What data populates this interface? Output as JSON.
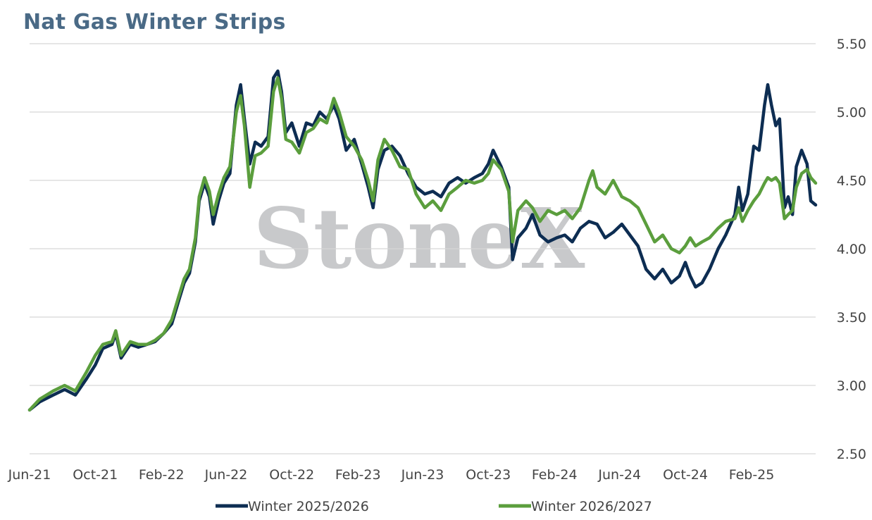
{
  "chart_data": {
    "type": "line",
    "title": "Nat Gas Winter Strips",
    "xlabel": "",
    "ylabel": "",
    "ylim": [
      2.5,
      5.5
    ],
    "yticks": [
      "2.50",
      "3.00",
      "3.50",
      "4.00",
      "4.50",
      "5.00",
      "5.50"
    ],
    "y_axis_side": "right",
    "xticks": [
      "Jun-21",
      "Oct-21",
      "Feb-22",
      "Jun-22",
      "Oct-22",
      "Feb-23",
      "Jun-23",
      "Oct-23",
      "Feb-24",
      "Jun-24",
      "Oct-24",
      "Feb-25"
    ],
    "x_range": [
      "2021-06-01",
      "2025-05-31"
    ],
    "grid": "horizontal",
    "legend_position": "bottom",
    "watermark": "StoneX",
    "series": [
      {
        "name": "Winter 2025/2026",
        "color": "#0d2d52",
        "points": [
          [
            "2021-06-01",
            2.82
          ],
          [
            "2021-06-20",
            2.88
          ],
          [
            "2021-07-15",
            2.93
          ],
          [
            "2021-08-05",
            2.97
          ],
          [
            "2021-08-25",
            2.93
          ],
          [
            "2021-09-15",
            3.05
          ],
          [
            "2021-10-01",
            3.15
          ],
          [
            "2021-10-15",
            3.27
          ],
          [
            "2021-11-01",
            3.3
          ],
          [
            "2021-11-08",
            3.38
          ],
          [
            "2021-11-18",
            3.2
          ],
          [
            "2021-12-05",
            3.3
          ],
          [
            "2021-12-20",
            3.28
          ],
          [
            "2022-01-05",
            3.3
          ],
          [
            "2022-01-20",
            3.32
          ],
          [
            "2022-02-05",
            3.38
          ],
          [
            "2022-02-20",
            3.45
          ],
          [
            "2022-03-05",
            3.62
          ],
          [
            "2022-03-15",
            3.75
          ],
          [
            "2022-03-25",
            3.82
          ],
          [
            "2022-04-05",
            4.05
          ],
          [
            "2022-04-12",
            4.35
          ],
          [
            "2022-04-22",
            4.48
          ],
          [
            "2022-05-01",
            4.38
          ],
          [
            "2022-05-08",
            4.18
          ],
          [
            "2022-05-18",
            4.35
          ],
          [
            "2022-05-28",
            4.48
          ],
          [
            "2022-06-08",
            4.55
          ],
          [
            "2022-06-20",
            5.05
          ],
          [
            "2022-06-28",
            5.2
          ],
          [
            "2022-07-05",
            4.95
          ],
          [
            "2022-07-15",
            4.62
          ],
          [
            "2022-07-25",
            4.78
          ],
          [
            "2022-08-05",
            4.75
          ],
          [
            "2022-08-18",
            4.82
          ],
          [
            "2022-08-28",
            5.25
          ],
          [
            "2022-09-05",
            5.3
          ],
          [
            "2022-09-12",
            5.15
          ],
          [
            "2022-09-20",
            4.85
          ],
          [
            "2022-10-01",
            4.92
          ],
          [
            "2022-10-15",
            4.75
          ],
          [
            "2022-10-28",
            4.92
          ],
          [
            "2022-11-10",
            4.9
          ],
          [
            "2022-11-22",
            5.0
          ],
          [
            "2022-12-05",
            4.95
          ],
          [
            "2022-12-18",
            5.05
          ],
          [
            "2022-12-28",
            4.95
          ],
          [
            "2023-01-10",
            4.72
          ],
          [
            "2023-01-25",
            4.8
          ],
          [
            "2023-02-08",
            4.62
          ],
          [
            "2023-02-20",
            4.45
          ],
          [
            "2023-03-01",
            4.3
          ],
          [
            "2023-03-10",
            4.58
          ],
          [
            "2023-03-22",
            4.72
          ],
          [
            "2023-04-05",
            4.75
          ],
          [
            "2023-04-20",
            4.68
          ],
          [
            "2023-05-05",
            4.55
          ],
          [
            "2023-05-20",
            4.45
          ],
          [
            "2023-06-05",
            4.4
          ],
          [
            "2023-06-20",
            4.42
          ],
          [
            "2023-07-05",
            4.38
          ],
          [
            "2023-07-20",
            4.48
          ],
          [
            "2023-08-05",
            4.52
          ],
          [
            "2023-08-20",
            4.48
          ],
          [
            "2023-09-05",
            4.52
          ],
          [
            "2023-09-20",
            4.55
          ],
          [
            "2023-10-01",
            4.62
          ],
          [
            "2023-10-10",
            4.72
          ],
          [
            "2023-10-25",
            4.6
          ],
          [
            "2023-11-08",
            4.45
          ],
          [
            "2023-11-15",
            3.92
          ],
          [
            "2023-11-25",
            4.08
          ],
          [
            "2023-12-10",
            4.15
          ],
          [
            "2023-12-22",
            4.25
          ],
          [
            "2024-01-05",
            4.1
          ],
          [
            "2024-01-20",
            4.05
          ],
          [
            "2024-02-05",
            4.08
          ],
          [
            "2024-02-20",
            4.1
          ],
          [
            "2024-03-05",
            4.05
          ],
          [
            "2024-03-20",
            4.15
          ],
          [
            "2024-04-05",
            4.2
          ],
          [
            "2024-04-20",
            4.18
          ],
          [
            "2024-05-05",
            4.08
          ],
          [
            "2024-05-20",
            4.12
          ],
          [
            "2024-06-05",
            4.18
          ],
          [
            "2024-06-20",
            4.1
          ],
          [
            "2024-07-05",
            4.02
          ],
          [
            "2024-07-20",
            3.85
          ],
          [
            "2024-08-05",
            3.78
          ],
          [
            "2024-08-20",
            3.85
          ],
          [
            "2024-09-05",
            3.75
          ],
          [
            "2024-09-20",
            3.8
          ],
          [
            "2024-10-01",
            3.9
          ],
          [
            "2024-10-10",
            3.8
          ],
          [
            "2024-10-20",
            3.72
          ],
          [
            "2024-11-01",
            3.75
          ],
          [
            "2024-11-15",
            3.85
          ],
          [
            "2024-12-01",
            4.0
          ],
          [
            "2024-12-15",
            4.1
          ],
          [
            "2025-01-01",
            4.25
          ],
          [
            "2025-01-08",
            4.45
          ],
          [
            "2025-01-15",
            4.28
          ],
          [
            "2025-01-25",
            4.4
          ],
          [
            "2025-02-05",
            4.75
          ],
          [
            "2025-02-15",
            4.72
          ],
          [
            "2025-02-25",
            5.05
          ],
          [
            "2025-03-03",
            5.2
          ],
          [
            "2025-03-10",
            5.05
          ],
          [
            "2025-03-18",
            4.9
          ],
          [
            "2025-03-25",
            4.95
          ],
          [
            "2025-04-03",
            4.3
          ],
          [
            "2025-04-10",
            4.38
          ],
          [
            "2025-04-18",
            4.25
          ],
          [
            "2025-04-25",
            4.6
          ],
          [
            "2025-05-05",
            4.72
          ],
          [
            "2025-05-15",
            4.62
          ],
          [
            "2025-05-22",
            4.35
          ],
          [
            "2025-05-31",
            4.32
          ]
        ]
      },
      {
        "name": "Winter 2026/2027",
        "color": "#5b9e3d",
        "points": [
          [
            "2021-06-01",
            2.82
          ],
          [
            "2021-06-20",
            2.9
          ],
          [
            "2021-07-15",
            2.96
          ],
          [
            "2021-08-05",
            3.0
          ],
          [
            "2021-08-25",
            2.96
          ],
          [
            "2021-09-15",
            3.1
          ],
          [
            "2021-10-01",
            3.22
          ],
          [
            "2021-10-15",
            3.3
          ],
          [
            "2021-11-01",
            3.32
          ],
          [
            "2021-11-08",
            3.4
          ],
          [
            "2021-11-18",
            3.22
          ],
          [
            "2021-12-05",
            3.32
          ],
          [
            "2021-12-20",
            3.3
          ],
          [
            "2022-01-05",
            3.3
          ],
          [
            "2022-01-20",
            3.33
          ],
          [
            "2022-02-05",
            3.38
          ],
          [
            "2022-02-20",
            3.48
          ],
          [
            "2022-03-05",
            3.65
          ],
          [
            "2022-03-15",
            3.78
          ],
          [
            "2022-03-25",
            3.85
          ],
          [
            "2022-04-05",
            4.08
          ],
          [
            "2022-04-12",
            4.38
          ],
          [
            "2022-04-22",
            4.52
          ],
          [
            "2022-05-01",
            4.42
          ],
          [
            "2022-05-08",
            4.25
          ],
          [
            "2022-05-18",
            4.4
          ],
          [
            "2022-05-28",
            4.52
          ],
          [
            "2022-06-08",
            4.6
          ],
          [
            "2022-06-20",
            5.0
          ],
          [
            "2022-06-28",
            5.12
          ],
          [
            "2022-07-05",
            4.9
          ],
          [
            "2022-07-15",
            4.45
          ],
          [
            "2022-07-25",
            4.68
          ],
          [
            "2022-08-05",
            4.7
          ],
          [
            "2022-08-18",
            4.75
          ],
          [
            "2022-08-28",
            5.15
          ],
          [
            "2022-09-05",
            5.25
          ],
          [
            "2022-09-12",
            5.1
          ],
          [
            "2022-09-20",
            4.8
          ],
          [
            "2022-10-01",
            4.78
          ],
          [
            "2022-10-15",
            4.7
          ],
          [
            "2022-10-28",
            4.85
          ],
          [
            "2022-11-10",
            4.88
          ],
          [
            "2022-11-22",
            4.95
          ],
          [
            "2022-12-05",
            4.92
          ],
          [
            "2022-12-18",
            5.1
          ],
          [
            "2022-12-28",
            5.0
          ],
          [
            "2023-01-10",
            4.82
          ],
          [
            "2023-01-25",
            4.75
          ],
          [
            "2023-02-08",
            4.65
          ],
          [
            "2023-02-20",
            4.5
          ],
          [
            "2023-03-01",
            4.35
          ],
          [
            "2023-03-10",
            4.65
          ],
          [
            "2023-03-22",
            4.8
          ],
          [
            "2023-04-05",
            4.72
          ],
          [
            "2023-04-20",
            4.6
          ],
          [
            "2023-05-05",
            4.58
          ],
          [
            "2023-05-20",
            4.4
          ],
          [
            "2023-06-05",
            4.3
          ],
          [
            "2023-06-20",
            4.35
          ],
          [
            "2023-07-05",
            4.28
          ],
          [
            "2023-07-20",
            4.4
          ],
          [
            "2023-08-05",
            4.45
          ],
          [
            "2023-08-20",
            4.5
          ],
          [
            "2023-09-05",
            4.48
          ],
          [
            "2023-09-20",
            4.5
          ],
          [
            "2023-10-01",
            4.55
          ],
          [
            "2023-10-10",
            4.65
          ],
          [
            "2023-10-25",
            4.58
          ],
          [
            "2023-11-08",
            4.42
          ],
          [
            "2023-11-15",
            4.05
          ],
          [
            "2023-11-25",
            4.28
          ],
          [
            "2023-12-10",
            4.35
          ],
          [
            "2023-12-22",
            4.3
          ],
          [
            "2024-01-05",
            4.2
          ],
          [
            "2024-01-20",
            4.28
          ],
          [
            "2024-02-05",
            4.25
          ],
          [
            "2024-02-20",
            4.28
          ],
          [
            "2024-03-05",
            4.22
          ],
          [
            "2024-03-20",
            4.3
          ],
          [
            "2024-04-05",
            4.5
          ],
          [
            "2024-04-12",
            4.57
          ],
          [
            "2024-04-20",
            4.45
          ],
          [
            "2024-05-05",
            4.4
          ],
          [
            "2024-05-20",
            4.5
          ],
          [
            "2024-06-05",
            4.38
          ],
          [
            "2024-06-20",
            4.35
          ],
          [
            "2024-07-05",
            4.3
          ],
          [
            "2024-07-20",
            4.18
          ],
          [
            "2024-08-05",
            4.05
          ],
          [
            "2024-08-20",
            4.1
          ],
          [
            "2024-09-05",
            4.0
          ],
          [
            "2024-09-20",
            3.97
          ],
          [
            "2024-10-01",
            4.02
          ],
          [
            "2024-10-10",
            4.08
          ],
          [
            "2024-10-20",
            4.02
          ],
          [
            "2024-11-01",
            4.05
          ],
          [
            "2024-11-15",
            4.08
          ],
          [
            "2024-12-01",
            4.15
          ],
          [
            "2024-12-15",
            4.2
          ],
          [
            "2025-01-01",
            4.22
          ],
          [
            "2025-01-08",
            4.3
          ],
          [
            "2025-01-15",
            4.2
          ],
          [
            "2025-01-25",
            4.28
          ],
          [
            "2025-02-05",
            4.35
          ],
          [
            "2025-02-15",
            4.4
          ],
          [
            "2025-02-25",
            4.48
          ],
          [
            "2025-03-03",
            4.52
          ],
          [
            "2025-03-10",
            4.5
          ],
          [
            "2025-03-18",
            4.52
          ],
          [
            "2025-03-25",
            4.48
          ],
          [
            "2025-04-03",
            4.22
          ],
          [
            "2025-04-10",
            4.25
          ],
          [
            "2025-04-18",
            4.28
          ],
          [
            "2025-04-25",
            4.45
          ],
          [
            "2025-05-05",
            4.55
          ],
          [
            "2025-05-15",
            4.58
          ],
          [
            "2025-05-22",
            4.52
          ],
          [
            "2025-05-31",
            4.48
          ]
        ]
      }
    ]
  }
}
